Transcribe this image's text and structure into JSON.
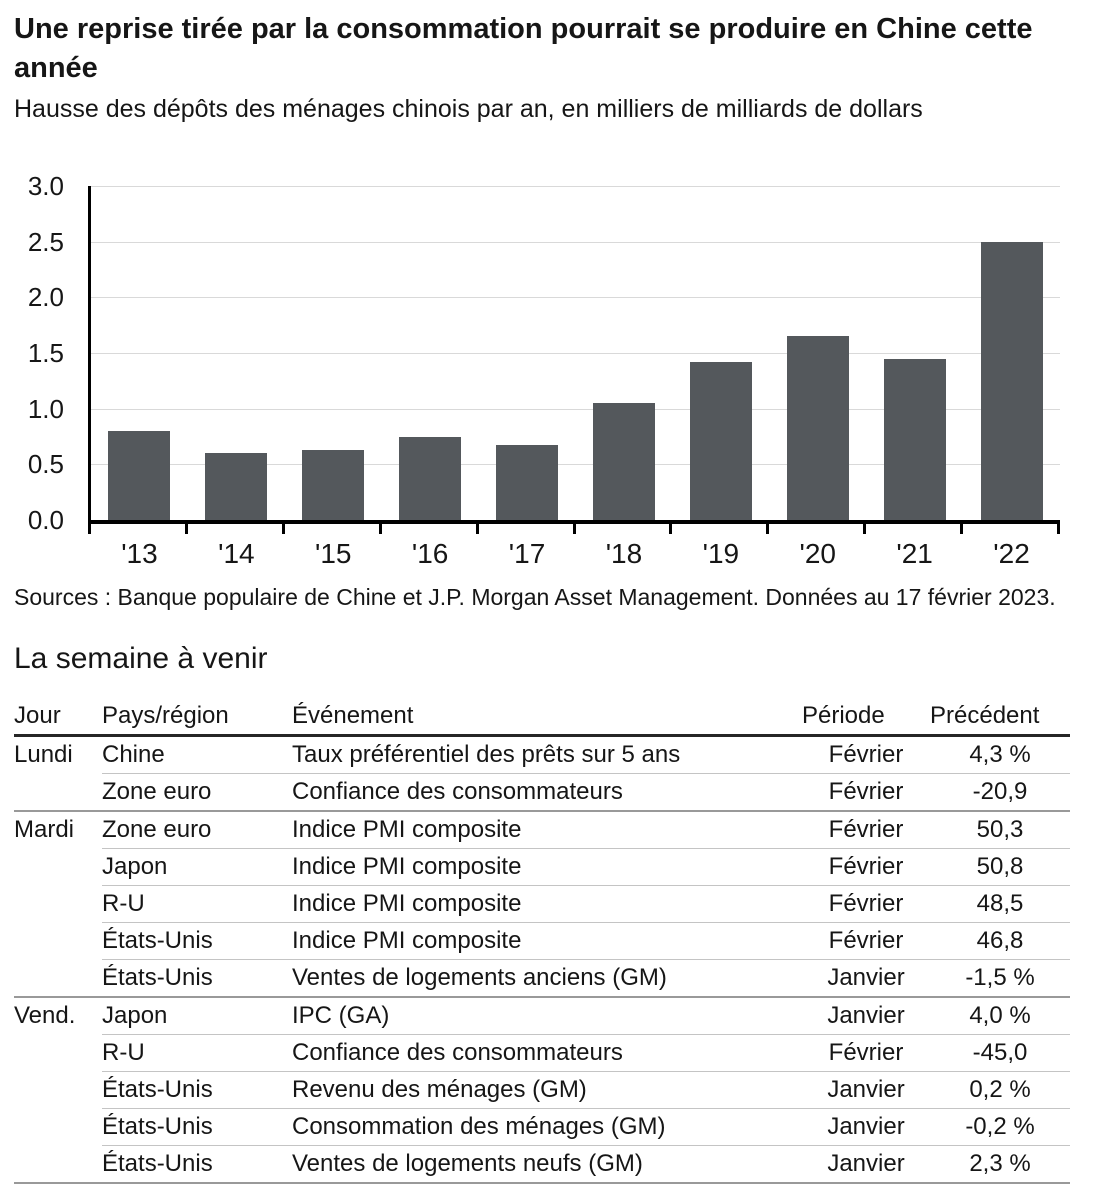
{
  "chart_data": [
    {
      "type": "bar",
      "title": "Une reprise tirée par la consommation pourrait se produire en Chine cette année",
      "subtitle": "Hausse des dépôts des ménages chinois par an, en milliers de milliards de dollars",
      "categories": [
        "'13",
        "'14",
        "'15",
        "'16",
        "'17",
        "'18",
        "'19",
        "'20",
        "'21",
        "'22"
      ],
      "values": [
        0.8,
        0.6,
        0.63,
        0.75,
        0.67,
        1.05,
        1.42,
        1.65,
        1.45,
        2.5
      ],
      "xlabel": "",
      "ylabel": "",
      "ylim": [
        0,
        3.0
      ],
      "ytick_step": 0.5,
      "grid": true,
      "legend": "none",
      "bar_color": "#54585c",
      "grid_color": "#d9d9d9",
      "axis_color": "#000000",
      "source": "Sources : Banque populaire de Chine et J.P. Morgan Asset Management. Données au 17 février 2023."
    },
    {
      "type": "table",
      "title": "La semaine à venir",
      "columns": [
        "Jour",
        "Pays/région",
        "Événement",
        "Période",
        "Précédent"
      ],
      "groups": [
        {
          "day": "Lundi",
          "rows": [
            {
              "country": "Chine",
              "event": "Taux préférentiel des prêts sur 5 ans",
              "period": "Février",
              "previous": "4,3 %"
            },
            {
              "country": "Zone euro",
              "event": "Confiance des consommateurs",
              "period": "Février",
              "previous": "-20,9"
            }
          ]
        },
        {
          "day": "Mardi",
          "rows": [
            {
              "country": "Zone euro",
              "event": "Indice PMI composite",
              "period": "Février",
              "previous": "50,3"
            },
            {
              "country": "Japon",
              "event": "Indice PMI composite",
              "period": "Février",
              "previous": "50,8"
            },
            {
              "country": "R-U",
              "event": "Indice PMI composite",
              "period": "Février",
              "previous": "48,5"
            },
            {
              "country": "États-Unis",
              "event": "Indice PMI composite",
              "period": "Février",
              "previous": "46,8"
            },
            {
              "country": "États-Unis",
              "event": "Ventes de logements anciens (GM)",
              "period": "Janvier",
              "previous": "-1,5 %"
            }
          ]
        },
        {
          "day": "Vend.",
          "rows": [
            {
              "country": "Japon",
              "event": "IPC (GA)",
              "period": "Janvier",
              "previous": "4,0 %"
            },
            {
              "country": "R-U",
              "event": "Confiance des consommateurs",
              "period": "Février",
              "previous": "-45,0"
            },
            {
              "country": "États-Unis",
              "event": "Revenu des ménages (GM)",
              "period": "Janvier",
              "previous": "0,2 %"
            },
            {
              "country": "États-Unis",
              "event": "Consommation des ménages (GM)",
              "period": "Janvier",
              "previous": "-0,2 %"
            },
            {
              "country": "États-Unis",
              "event": "Ventes de logements neufs (GM)",
              "period": "Janvier",
              "previous": "2,3 %"
            }
          ]
        }
      ]
    }
  ]
}
